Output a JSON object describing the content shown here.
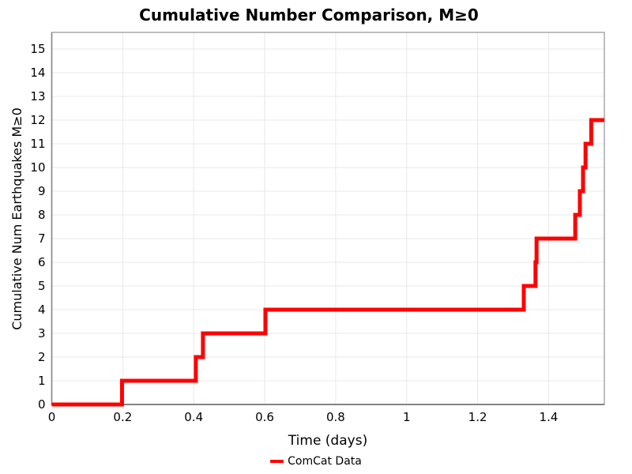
{
  "chart_data": {
    "type": "line",
    "subtype": "cumulative-step",
    "title": "Cumulative Number Comparison, M≥0",
    "xlabel": "Time (days)",
    "ylabel": "Cumulative Num Earthquakes M≥0",
    "xlim": [
      0,
      1.557
    ],
    "ylim": [
      0,
      15.7
    ],
    "grid": true,
    "x_ticks": {
      "values": [
        0,
        0.2,
        0.4,
        0.6,
        0.8,
        1,
        1.2,
        1.4
      ],
      "labels": [
        "0",
        "0.2",
        "0.4",
        "0.6",
        "0.8",
        "1",
        "1.2",
        "1.4"
      ]
    },
    "y_ticks": {
      "values": [
        0,
        1,
        2,
        3,
        4,
        5,
        6,
        7,
        8,
        9,
        10,
        11,
        12,
        13,
        14,
        15
      ],
      "labels": [
        "0",
        "1",
        "2",
        "3",
        "4",
        "5",
        "6",
        "7",
        "8",
        "9",
        "10",
        "11",
        "12",
        "13",
        "14",
        "15"
      ]
    },
    "legend_position": "bottom-center",
    "legend": [
      {
        "label": "ComCat Data",
        "color": "#ff0000"
      }
    ],
    "series": [
      {
        "name": "ComCat Data",
        "color": "#ff0000",
        "line_width": 5,
        "start": [
          0,
          0
        ],
        "events": [
          [
            0.198,
            1
          ],
          [
            0.406,
            2
          ],
          [
            0.426,
            3
          ],
          [
            0.602,
            4
          ],
          [
            1.33,
            5
          ],
          [
            1.363,
            6
          ],
          [
            1.366,
            7
          ],
          [
            1.475,
            8
          ],
          [
            1.488,
            9
          ],
          [
            1.497,
            10
          ],
          [
            1.504,
            11
          ],
          [
            1.52,
            12
          ]
        ],
        "end_x": 1.557
      }
    ],
    "colors": {
      "background": "#ffffff",
      "grid": "#e8e8e8",
      "spine": "#9c9c9c",
      "spine_heavy": "#858585",
      "text": "#000000"
    }
  }
}
